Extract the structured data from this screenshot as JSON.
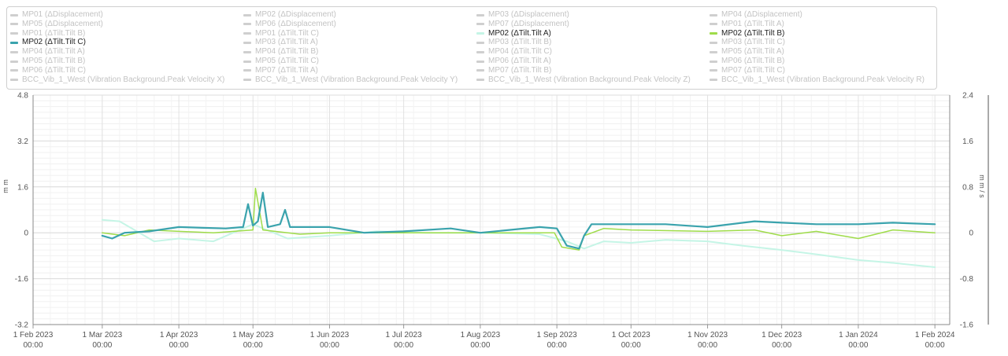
{
  "legend": {
    "items": [
      {
        "label": "MP01 (ΔDisplacement)",
        "visible": false,
        "color": "#cfcfcf"
      },
      {
        "label": "MP02 (ΔDisplacement)",
        "visible": false,
        "color": "#cfcfcf"
      },
      {
        "label": "MP03 (ΔDisplacement)",
        "visible": false,
        "color": "#cfcfcf"
      },
      {
        "label": "MP04 (ΔDisplacement)",
        "visible": false,
        "color": "#cfcfcf"
      },
      {
        "label": "MP05 (ΔDisplacement)",
        "visible": false,
        "color": "#cfcfcf"
      },
      {
        "label": "MP06 (ΔDisplacement)",
        "visible": false,
        "color": "#cfcfcf"
      },
      {
        "label": "MP07 (ΔDisplacement)",
        "visible": false,
        "color": "#cfcfcf"
      },
      {
        "label": "MP01 (ΔTilt.Tilt A)",
        "visible": false,
        "color": "#cfcfcf"
      },
      {
        "label": "MP01 (ΔTilt.Tilt B)",
        "visible": false,
        "color": "#cfcfcf"
      },
      {
        "label": "MP01 (ΔTilt.Tilt C)",
        "visible": false,
        "color": "#cfcfcf"
      },
      {
        "label": "MP02 (ΔTilt.Tilt A)",
        "visible": true,
        "color": "#c5f5e6"
      },
      {
        "label": "MP02 (ΔTilt.Tilt B)",
        "visible": true,
        "color": "#9fdc4a"
      },
      {
        "label": "MP02 (ΔTilt.Tilt C)",
        "visible": true,
        "color": "#3aa3ad"
      },
      {
        "label": "MP03 (ΔTilt.Tilt A)",
        "visible": false,
        "color": "#cfcfcf"
      },
      {
        "label": "MP03 (ΔTilt.Tilt B)",
        "visible": false,
        "color": "#cfcfcf"
      },
      {
        "label": "MP03 (ΔTilt.Tilt C)",
        "visible": false,
        "color": "#cfcfcf"
      },
      {
        "label": "MP04 (ΔTilt.Tilt A)",
        "visible": false,
        "color": "#cfcfcf"
      },
      {
        "label": "MP04 (ΔTilt.Tilt B)",
        "visible": false,
        "color": "#cfcfcf"
      },
      {
        "label": "MP04 (ΔTilt.Tilt C)",
        "visible": false,
        "color": "#cfcfcf"
      },
      {
        "label": "MP05 (ΔTilt.Tilt A)",
        "visible": false,
        "color": "#cfcfcf"
      },
      {
        "label": "MP05 (ΔTilt.Tilt B)",
        "visible": false,
        "color": "#cfcfcf"
      },
      {
        "label": "MP05 (ΔTilt.Tilt C)",
        "visible": false,
        "color": "#cfcfcf"
      },
      {
        "label": "MP06 (ΔTilt.Tilt A)",
        "visible": false,
        "color": "#cfcfcf"
      },
      {
        "label": "MP06 (ΔTilt.Tilt B)",
        "visible": false,
        "color": "#cfcfcf"
      },
      {
        "label": "MP06 (ΔTilt.Tilt C)",
        "visible": false,
        "color": "#cfcfcf"
      },
      {
        "label": "MP07 (ΔTilt.Tilt A)",
        "visible": false,
        "color": "#cfcfcf"
      },
      {
        "label": "MP07 (ΔTilt.Tilt B)",
        "visible": false,
        "color": "#cfcfcf"
      },
      {
        "label": "MP07 (ΔTilt.Tilt C)",
        "visible": false,
        "color": "#cfcfcf"
      },
      {
        "label": "BCC_Vib_1_West (Vibration Background.Peak Velocity X)",
        "visible": false,
        "color": "#cfcfcf"
      },
      {
        "label": "BCC_Vib_1_West (Vibration Background.Peak Velocity Y)",
        "visible": false,
        "color": "#cfcfcf"
      },
      {
        "label": "BCC_Vib_1_West (Vibration Background.Peak Velocity Z)",
        "visible": false,
        "color": "#cfcfcf"
      },
      {
        "label": "BCC_Vib_1_West (Vibration Background.Peak Velocity R)",
        "visible": false,
        "color": "#cfcfcf"
      }
    ]
  },
  "chart_data": {
    "type": "line",
    "title": "",
    "xlabel": "",
    "ylabel": "m m",
    "y2label": "m m / s",
    "ylim": [
      -3.2,
      4.8
    ],
    "y2lim": [
      -1.6,
      2.4
    ],
    "yticks": [
      "4.8",
      "3.2",
      "1.6",
      "0",
      "-1.6",
      "-3.2"
    ],
    "y2ticks": [
      "2.4",
      "1.6",
      "0.8",
      "0",
      "-0.8",
      "-1.6"
    ],
    "xlim": [
      "2023-02-01",
      "2024-02-07"
    ],
    "xticks": [
      {
        "date": "2023-02-01",
        "line1": "1 Feb 2023",
        "line2": "00:00"
      },
      {
        "date": "2023-03-01",
        "line1": "1 Mar 2023",
        "line2": "00:00"
      },
      {
        "date": "2023-04-01",
        "line1": "1 Apr 2023",
        "line2": "00:00"
      },
      {
        "date": "2023-05-01",
        "line1": "1 May 2023",
        "line2": "00:00"
      },
      {
        "date": "2023-06-01",
        "line1": "1 Jun 2023",
        "line2": "00:00"
      },
      {
        "date": "2023-07-01",
        "line1": "1 Jul 2023",
        "line2": "00:00"
      },
      {
        "date": "2023-08-01",
        "line1": "1 Aug 2023",
        "line2": "00:00"
      },
      {
        "date": "2023-09-01",
        "line1": "1 Sep 2023",
        "line2": "00:00"
      },
      {
        "date": "2023-10-01",
        "line1": "1 Oct 2023",
        "line2": "00:00"
      },
      {
        "date": "2023-11-01",
        "line1": "1 Nov 2023",
        "line2": "00:00"
      },
      {
        "date": "2023-12-01",
        "line1": "1 Dec 2023",
        "line2": "00:00"
      },
      {
        "date": "2024-01-01",
        "line1": "1 Jan 2024",
        "line2": "00:00"
      },
      {
        "date": "2024-02-01",
        "line1": "1 Feb 2024",
        "line2": "00:00"
      }
    ],
    "grid": true,
    "legend_position": "top",
    "series": [
      {
        "name": "MP02 (ΔTilt.Tilt A)",
        "color": "#c5f5e6",
        "width": 2,
        "points": [
          [
            "2023-03-01",
            0.45
          ],
          [
            "2023-03-08",
            0.4
          ],
          [
            "2023-03-15",
            0.05
          ],
          [
            "2023-03-22",
            -0.3
          ],
          [
            "2023-04-01",
            -0.2
          ],
          [
            "2023-04-15",
            -0.3
          ],
          [
            "2023-05-01",
            0.3
          ],
          [
            "2023-05-15",
            -0.2
          ],
          [
            "2023-06-01",
            -0.1
          ],
          [
            "2023-06-20",
            0.05
          ],
          [
            "2023-07-10",
            0.0
          ],
          [
            "2023-08-01",
            0.0
          ],
          [
            "2023-08-25",
            -0.05
          ],
          [
            "2023-09-05",
            -0.3
          ],
          [
            "2023-09-12",
            -0.55
          ],
          [
            "2023-09-20",
            -0.3
          ],
          [
            "2023-10-01",
            -0.35
          ],
          [
            "2023-10-15",
            -0.25
          ],
          [
            "2023-11-01",
            -0.3
          ],
          [
            "2023-11-15",
            -0.45
          ],
          [
            "2023-12-01",
            -0.6
          ],
          [
            "2023-12-15",
            -0.75
          ],
          [
            "2024-01-01",
            -0.95
          ],
          [
            "2024-01-15",
            -1.05
          ],
          [
            "2024-02-01",
            -1.2
          ]
        ]
      },
      {
        "name": "MP02 (ΔTilt.Tilt B)",
        "color": "#9fdc4a",
        "width": 1.5,
        "points": [
          [
            "2023-03-01",
            0.0
          ],
          [
            "2023-03-10",
            -0.1
          ],
          [
            "2023-03-20",
            0.1
          ],
          [
            "2023-04-01",
            0.05
          ],
          [
            "2023-04-15",
            0.0
          ],
          [
            "2023-05-01",
            0.1
          ],
          [
            "2023-05-02",
            1.55
          ],
          [
            "2023-05-05",
            0.1
          ],
          [
            "2023-05-20",
            -0.05
          ],
          [
            "2023-06-01",
            0.0
          ],
          [
            "2023-07-01",
            0.0
          ],
          [
            "2023-08-01",
            0.0
          ],
          [
            "2023-08-31",
            0.0
          ],
          [
            "2023-09-03",
            -0.5
          ],
          [
            "2023-09-10",
            -0.6
          ],
          [
            "2023-09-12",
            -0.1
          ],
          [
            "2023-09-20",
            0.15
          ],
          [
            "2023-10-01",
            0.1
          ],
          [
            "2023-11-01",
            0.05
          ],
          [
            "2023-11-20",
            0.1
          ],
          [
            "2023-12-01",
            -0.1
          ],
          [
            "2023-12-15",
            0.05
          ],
          [
            "2024-01-01",
            -0.2
          ],
          [
            "2024-01-15",
            0.1
          ],
          [
            "2024-02-01",
            0.0
          ]
        ]
      },
      {
        "name": "MP02 (ΔTilt.Tilt C)",
        "color": "#3aa3ad",
        "width": 2.2,
        "points": [
          [
            "2023-03-01",
            -0.1
          ],
          [
            "2023-03-05",
            -0.2
          ],
          [
            "2023-03-10",
            0.0
          ],
          [
            "2023-03-20",
            0.05
          ],
          [
            "2023-04-01",
            0.2
          ],
          [
            "2023-04-20",
            0.15
          ],
          [
            "2023-04-27",
            0.2
          ],
          [
            "2023-04-29",
            1.0
          ],
          [
            "2023-05-01",
            0.25
          ],
          [
            "2023-05-03",
            0.4
          ],
          [
            "2023-05-05",
            1.4
          ],
          [
            "2023-05-07",
            0.2
          ],
          [
            "2023-05-12",
            0.3
          ],
          [
            "2023-05-14",
            0.8
          ],
          [
            "2023-05-16",
            0.2
          ],
          [
            "2023-06-01",
            0.2
          ],
          [
            "2023-06-15",
            0.0
          ],
          [
            "2023-07-01",
            0.05
          ],
          [
            "2023-07-20",
            0.15
          ],
          [
            "2023-08-01",
            0.0
          ],
          [
            "2023-08-25",
            0.2
          ],
          [
            "2023-09-01",
            0.15
          ],
          [
            "2023-09-05",
            -0.45
          ],
          [
            "2023-09-10",
            -0.55
          ],
          [
            "2023-09-12",
            -0.1
          ],
          [
            "2023-09-15",
            0.3
          ],
          [
            "2023-10-01",
            0.3
          ],
          [
            "2023-10-15",
            0.3
          ],
          [
            "2023-11-01",
            0.2
          ],
          [
            "2023-11-20",
            0.4
          ],
          [
            "2023-12-01",
            0.35
          ],
          [
            "2023-12-15",
            0.3
          ],
          [
            "2024-01-01",
            0.3
          ],
          [
            "2024-01-15",
            0.35
          ],
          [
            "2024-02-01",
            0.3
          ]
        ]
      }
    ]
  }
}
